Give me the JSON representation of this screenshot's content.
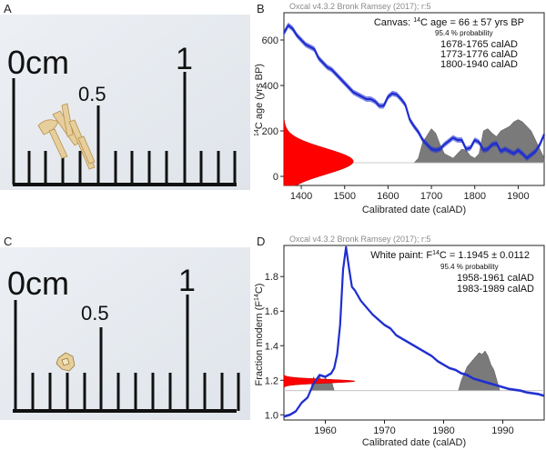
{
  "panels": {
    "A": {
      "letter": "A",
      "ruler": {
        "label_0": "0cm",
        "label_half": "0.5",
        "label_1": "1"
      }
    },
    "B": {
      "letter": "B"
    },
    "C": {
      "letter": "C",
      "ruler": {
        "label_0": "0cm",
        "label_half": "0.5",
        "label_1": "1"
      }
    },
    "D": {
      "letter": "D"
    }
  },
  "colors": {
    "curve": "#1f2ecf",
    "prob_red": "#ff0000",
    "posterior_grey": "#7a7a7a",
    "photo_bg": "#e9edf2"
  },
  "chart_data": [
    {
      "id": "B",
      "type": "line",
      "header": "Oxcal v4.3.2 Bronk Ramsey (2017); r:5",
      "annotation": {
        "title_pre": "Canvas: ",
        "title_sup": "14",
        "title_post": "C age = 66 ± 57 yrs BP",
        "prob_label": "95.4 % probability",
        "ranges": [
          "1678-1765 calAD",
          "1773-1776 calAD",
          "1800-1940 calAD"
        ]
      },
      "ylabel_sup": "14",
      "ylabel_post": "C age (yrs BP)",
      "xlabel": "Calibrated date (calAD)",
      "xlim": [
        1360,
        1960
      ],
      "ylim": [
        -40,
        720
      ],
      "xticks": [
        1400,
        1500,
        1600,
        1700,
        1800,
        1900
      ],
      "xtick_labels": [
        "1400",
        "1500",
        "1600",
        "1700",
        "1800",
        "1900"
      ],
      "yticks": [
        0,
        200,
        400,
        600
      ],
      "ytick_labels": [
        "0",
        "200",
        "400",
        "600"
      ],
      "calibration_curve": {
        "x": [
          1360,
          1370,
          1380,
          1390,
          1400,
          1410,
          1420,
          1430,
          1440,
          1450,
          1460,
          1470,
          1480,
          1490,
          1500,
          1510,
          1520,
          1530,
          1540,
          1550,
          1560,
          1570,
          1580,
          1590,
          1600,
          1610,
          1620,
          1630,
          1640,
          1650,
          1660,
          1670,
          1680,
          1690,
          1700,
          1710,
          1720,
          1730,
          1740,
          1750,
          1760,
          1770,
          1780,
          1790,
          1800,
          1810,
          1820,
          1830,
          1840,
          1850,
          1860,
          1870,
          1880,
          1890,
          1900,
          1910,
          1920,
          1930,
          1940,
          1950,
          1960
        ],
        "y": [
          630,
          665,
          650,
          620,
          600,
          580,
          570,
          560,
          520,
          500,
          480,
          470,
          450,
          430,
          410,
          390,
          370,
          360,
          350,
          340,
          340,
          330,
          310,
          310,
          350,
          365,
          360,
          340,
          315,
          250,
          220,
          195,
          160,
          140,
          120,
          115,
          120,
          140,
          155,
          170,
          160,
          160,
          120,
          125,
          160,
          150,
          115,
          120,
          140,
          145,
          110,
          120,
          110,
          100,
          115,
          100,
          80,
          95,
          110,
          140,
          185
        ],
        "band_halfwidth": 12
      },
      "radiocarbon_distribution": {
        "mean": 66,
        "sigma": 57,
        "baseline_yr": 1360,
        "peak_width_yr": 160
      },
      "calibrated_distribution": {
        "x": [
          1660,
          1670,
          1680,
          1690,
          1700,
          1710,
          1720,
          1730,
          1740,
          1750,
          1760,
          1770,
          1780,
          1790,
          1800,
          1810,
          1820,
          1830,
          1840,
          1850,
          1860,
          1870,
          1880,
          1890,
          1900,
          1910,
          1920,
          1930,
          1940,
          1950,
          1960
        ],
        "y": [
          0,
          20,
          90,
          120,
          150,
          130,
          80,
          40,
          30,
          20,
          40,
          60,
          55,
          30,
          20,
          40,
          140,
          150,
          130,
          115,
          140,
          150,
          160,
          180,
          190,
          180,
          160,
          140,
          100,
          60,
          20
        ],
        "baseline": 60
      }
    },
    {
      "id": "D",
      "type": "line",
      "header": "Oxcal v4.3.2 Bronk Ramsey (2017); r:5",
      "annotation": {
        "title_pre": "White paint: F",
        "title_sup": "14",
        "title_post": "C = 1.1945 ± 0.0112",
        "prob_label": "95.4 % probability",
        "ranges": [
          "1958-1961 calAD",
          "1983-1989 calAD"
        ]
      },
      "ylabel_pre": "Fraction modern (F",
      "ylabel_sup": "14",
      "ylabel_post": "C)",
      "xlabel": "Calibrated date (calAD)",
      "xlim": [
        1953,
        1997
      ],
      "ylim": [
        0.97,
        1.98
      ],
      "xticks": [
        1960,
        1970,
        1980,
        1990
      ],
      "xtick_labels": [
        "1960",
        "1970",
        "1980",
        "1990"
      ],
      "yticks": [
        1.0,
        1.2,
        1.4,
        1.6,
        1.8
      ],
      "ytick_labels": [
        "1.0",
        "1.2",
        "1.4",
        "1.6",
        "1.8"
      ],
      "calibration_curve": {
        "x": [
          1953,
          1954,
          1955,
          1956,
          1957,
          1958,
          1959,
          1960,
          1961,
          1961.5,
          1962,
          1962.5,
          1963,
          1963.5,
          1964,
          1964.5,
          1965,
          1966,
          1967,
          1968,
          1969,
          1970,
          1971,
          1972,
          1973,
          1974,
          1975,
          1976,
          1977,
          1978,
          1979,
          1980,
          1981,
          1982,
          1983,
          1984,
          1985,
          1986,
          1987,
          1988,
          1989,
          1990,
          1991,
          1992,
          1993,
          1994,
          1995,
          1996,
          1997
        ],
        "y": [
          0.99,
          1.0,
          1.02,
          1.07,
          1.1,
          1.18,
          1.23,
          1.22,
          1.24,
          1.27,
          1.35,
          1.52,
          1.84,
          1.97,
          1.85,
          1.74,
          1.72,
          1.66,
          1.62,
          1.58,
          1.55,
          1.52,
          1.5,
          1.46,
          1.44,
          1.42,
          1.4,
          1.38,
          1.36,
          1.34,
          1.31,
          1.29,
          1.27,
          1.26,
          1.24,
          1.23,
          1.21,
          1.2,
          1.19,
          1.18,
          1.17,
          1.16,
          1.15,
          1.145,
          1.14,
          1.13,
          1.125,
          1.12,
          1.11
        ],
        "band_halfwidth": 0.008
      },
      "radiocarbon_distribution": {
        "mean": 1.1945,
        "sigma": 0.0112,
        "baseline_yr": 1953,
        "peak_width_yr": 12
      },
      "calibrated_distribution": {
        "x": [
          1957.5,
          1958,
          1958.5,
          1959,
          1959.5,
          1960,
          1960.5,
          1961,
          1961.5,
          1982.5,
          1983,
          1983.5,
          1984,
          1984.5,
          1985,
          1985.5,
          1986,
          1986.5,
          1987,
          1987.5,
          1988,
          1988.5,
          1989,
          1989.5
        ],
        "y": [
          0,
          0.08,
          0.05,
          0.09,
          0.03,
          0.08,
          0.04,
          0.06,
          0,
          0,
          0.06,
          0.1,
          0.14,
          0.16,
          0.18,
          0.2,
          0.22,
          0.21,
          0.23,
          0.2,
          0.15,
          0.12,
          0.06,
          0
        ],
        "baseline": 1.14,
        "gap_after_index": 8
      }
    }
  ]
}
